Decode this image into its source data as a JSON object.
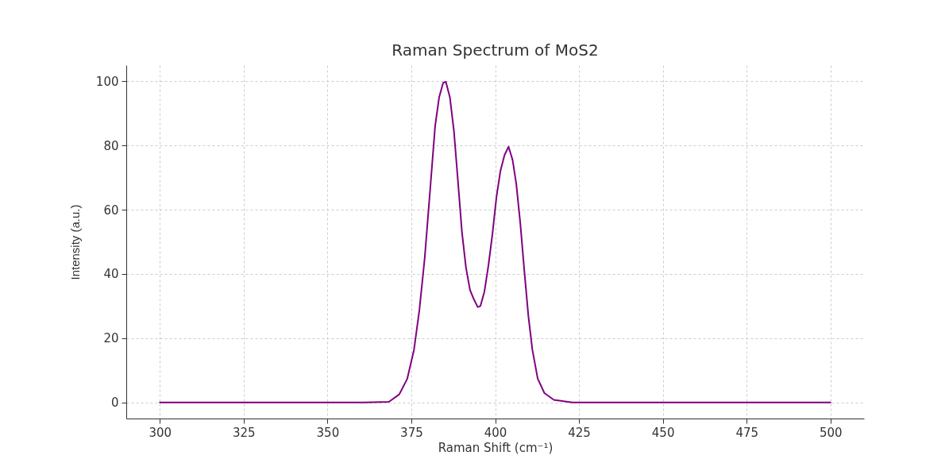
{
  "chart_data": {
    "type": "line",
    "title": "Raman Spectrum of MoS2",
    "xlabel": "Raman Shift (cm⁻¹)",
    "ylabel": "Intensity (a.u.)",
    "x": [
      300,
      340,
      361,
      368.3,
      371.4,
      373.8,
      375.8,
      377.4,
      379,
      380.6,
      382.1,
      383.3,
      384.5,
      385.3,
      386.5,
      387.7,
      388.9,
      390.1,
      391.3,
      392.5,
      393.7,
      394.8,
      395.6,
      396.8,
      398,
      399.2,
      400.4,
      401.6,
      402.8,
      404,
      405.2,
      406.3,
      407.5,
      408.7,
      409.9,
      411.1,
      412.7,
      414.7,
      417.5,
      423,
      450,
      500
    ],
    "series": [
      {
        "color": "#800080",
        "values": [
          0,
          0,
          0,
          0.2,
          2.5,
          7.4,
          16.4,
          28.7,
          45,
          66,
          86,
          95,
          99.5,
          99.8,
          95,
          84.6,
          69,
          53,
          42,
          35,
          32,
          29.7,
          30,
          34.5,
          42.7,
          52.5,
          64,
          72.2,
          77,
          79.6,
          75.5,
          68,
          55.8,
          41,
          27,
          16.4,
          7.4,
          2.9,
          0.8,
          0,
          0,
          0
        ]
      }
    ],
    "xlim": [
      290,
      510
    ],
    "ylim": [
      -5,
      105
    ],
    "xticks": [
      300,
      325,
      350,
      375,
      400,
      425,
      450,
      475,
      500
    ],
    "yticks": [
      0,
      20,
      40,
      60,
      80,
      100
    ],
    "grid": true,
    "line_style": "solid"
  }
}
